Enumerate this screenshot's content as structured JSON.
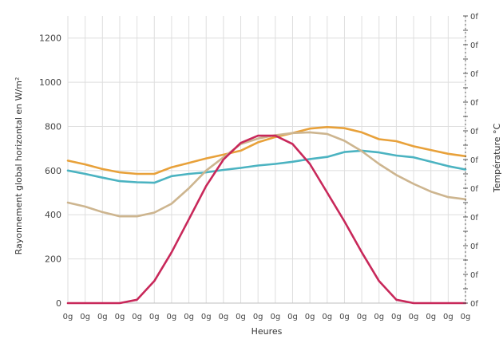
{
  "chart_data": {
    "type": "line",
    "title": "",
    "xlabel": "Heures",
    "ylabel": "Rayonnement global horizontal en W/m²",
    "y2label": "Température °C",
    "ylim": [
      0,
      1300
    ],
    "yticks": [
      "0",
      "200",
      "400",
      "600",
      "800",
      "1000",
      "1200"
    ],
    "ytick_values": [
      0,
      200,
      400,
      600,
      800,
      1000,
      1200
    ],
    "y2ticks": [
      "0f",
      "0f",
      "0f",
      "0f",
      "0f",
      "0f",
      "0f",
      "0f",
      "0f",
      "0f",
      "0f"
    ],
    "x": [
      "0g",
      "0g",
      "0g",
      "0g",
      "0g",
      "0g",
      "0g",
      "0g",
      "0g",
      "0g",
      "0g",
      "0g",
      "0g",
      "0g",
      "0g",
      "0g",
      "0g",
      "0g",
      "0g",
      "0g",
      "0g",
      "0g",
      "0g",
      "0g"
    ],
    "grid": true,
    "series": [
      {
        "color": "#e8a13a",
        "values": [
          645,
          628,
          607,
          592,
          585,
          585,
          615,
          635,
          655,
          672,
          690,
          728,
          752,
          770,
          790,
          797,
          792,
          773,
          742,
          733,
          710,
          693,
          676,
          665
        ]
      },
      {
        "color": "#4bb3c1",
        "values": [
          600,
          585,
          568,
          552,
          547,
          545,
          575,
          585,
          592,
          603,
          612,
          623,
          630,
          640,
          652,
          662,
          684,
          690,
          682,
          668,
          660,
          640,
          620,
          605
        ]
      },
      {
        "color": "#cdb58f",
        "values": [
          455,
          437,
          412,
          393,
          393,
          410,
          450,
          520,
          600,
          660,
          720,
          745,
          760,
          770,
          773,
          766,
          735,
          688,
          630,
          580,
          540,
          505,
          480,
          470
        ]
      },
      {
        "color": "#c8285a",
        "values": [
          0,
          0,
          0,
          0,
          15,
          100,
          230,
          380,
          530,
          650,
          725,
          758,
          758,
          720,
          630,
          500,
          370,
          230,
          100,
          15,
          0,
          0,
          0,
          0
        ]
      }
    ]
  }
}
